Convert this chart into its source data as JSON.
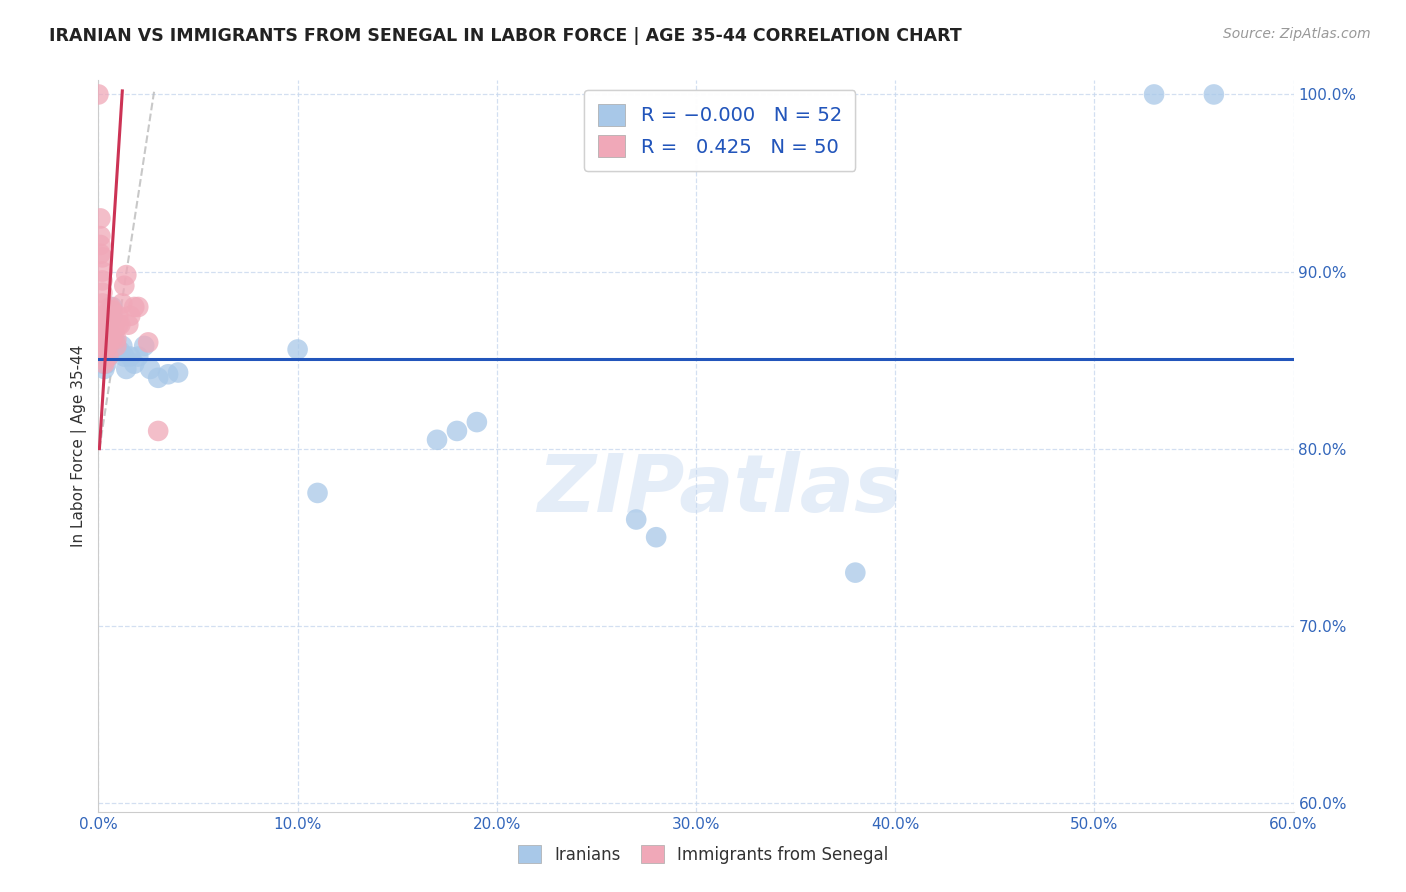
{
  "title": "IRANIAN VS IMMIGRANTS FROM SENEGAL IN LABOR FORCE | AGE 35-44 CORRELATION CHART",
  "source": "Source: ZipAtlas.com",
  "ylabel": "In Labor Force | Age 35-44",
  "xlim": [
    0.0,
    0.6
  ],
  "ylim": [
    0.595,
    1.008
  ],
  "yticks": [
    0.6,
    0.7,
    0.8,
    0.9,
    1.0
  ],
  "xticks": [
    0.0,
    0.1,
    0.2,
    0.3,
    0.4,
    0.5,
    0.6
  ],
  "legend_R_blue": "-0.000",
  "legend_N_blue": "52",
  "legend_R_pink": "0.425",
  "legend_N_pink": "50",
  "blue_color": "#a8c8e8",
  "pink_color": "#f0a8b8",
  "blue_line_color": "#2255bb",
  "pink_line_color": "#cc3355",
  "gray_dash_color": "#bbbbbb",
  "watermark": "ZIPatlas",
  "iranians_x": [
    0.001,
    0.001,
    0.002,
    0.002,
    0.002,
    0.002,
    0.002,
    0.003,
    0.003,
    0.003,
    0.003,
    0.003,
    0.003,
    0.004,
    0.004,
    0.004,
    0.004,
    0.004,
    0.005,
    0.005,
    0.005,
    0.005,
    0.006,
    0.006,
    0.006,
    0.007,
    0.007,
    0.008,
    0.009,
    0.01,
    0.011,
    0.012,
    0.013,
    0.014,
    0.016,
    0.018,
    0.02,
    0.023,
    0.026,
    0.03,
    0.035,
    0.04,
    0.1,
    0.11,
    0.17,
    0.18,
    0.19,
    0.27,
    0.28,
    0.38,
    0.53,
    0.56
  ],
  "iranians_y": [
    0.86,
    0.865,
    0.855,
    0.858,
    0.862,
    0.848,
    0.853,
    0.855,
    0.858,
    0.862,
    0.845,
    0.85,
    0.855,
    0.848,
    0.852,
    0.858,
    0.862,
    0.865,
    0.852,
    0.855,
    0.858,
    0.862,
    0.855,
    0.86,
    0.865,
    0.875,
    0.88,
    0.862,
    0.858,
    0.855,
    0.855,
    0.858,
    0.852,
    0.845,
    0.852,
    0.848,
    0.852,
    0.858,
    0.845,
    0.84,
    0.842,
    0.843,
    0.856,
    0.775,
    0.805,
    0.81,
    0.815,
    0.76,
    0.75,
    0.73,
    1.0,
    1.0
  ],
  "senegal_x": [
    0.0,
    0.001,
    0.001,
    0.001,
    0.001,
    0.002,
    0.002,
    0.002,
    0.002,
    0.002,
    0.002,
    0.002,
    0.003,
    0.003,
    0.003,
    0.003,
    0.003,
    0.003,
    0.003,
    0.004,
    0.004,
    0.004,
    0.004,
    0.005,
    0.005,
    0.005,
    0.005,
    0.006,
    0.006,
    0.006,
    0.007,
    0.007,
    0.007,
    0.007,
    0.008,
    0.008,
    0.009,
    0.009,
    0.01,
    0.01,
    0.011,
    0.012,
    0.013,
    0.014,
    0.015,
    0.016,
    0.018,
    0.02,
    0.025,
    0.03
  ],
  "senegal_y": [
    1.0,
    0.93,
    0.92,
    0.915,
    0.91,
    0.908,
    0.9,
    0.895,
    0.888,
    0.882,
    0.878,
    0.875,
    0.872,
    0.868,
    0.862,
    0.858,
    0.855,
    0.85,
    0.848,
    0.875,
    0.87,
    0.862,
    0.858,
    0.868,
    0.862,
    0.858,
    0.852,
    0.88,
    0.875,
    0.87,
    0.878,
    0.872,
    0.868,
    0.862,
    0.87,
    0.865,
    0.862,
    0.858,
    0.875,
    0.87,
    0.87,
    0.882,
    0.892,
    0.898,
    0.87,
    0.875,
    0.88,
    0.88,
    0.86,
    0.81
  ]
}
